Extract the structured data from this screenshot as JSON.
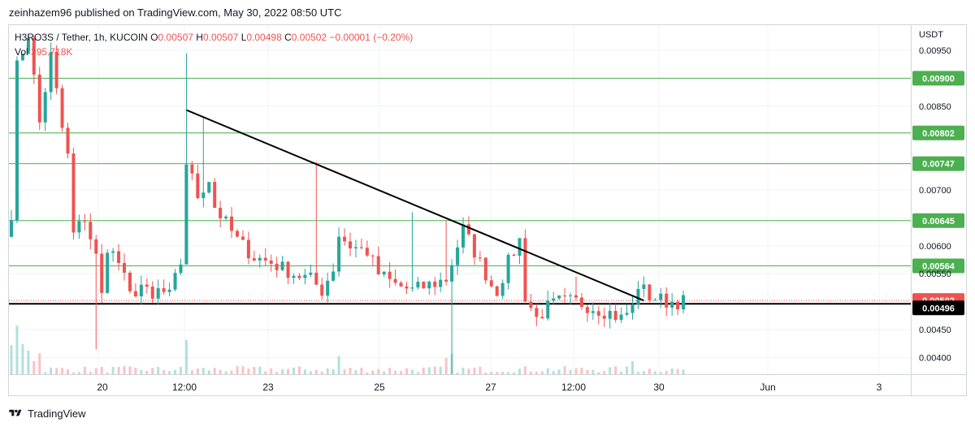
{
  "header": {
    "published": "zeinhazem96 published on TradingView.com, May 30, 2022 08:50 UTC"
  },
  "legend": {
    "symbol": "H3RO3S / Tether, 1h, KUCOIN",
    "o_label": "O",
    "o_value": "0.00507",
    "h_label": "H",
    "h_value": "0.00507",
    "l_label": "L",
    "l_value": "0.00498",
    "c_label": "C",
    "c_value": "0.00502",
    "change": "−0.00001 (−0.20%)",
    "vol_label": "Vol",
    "vol_value": "395.718K"
  },
  "footer": {
    "brand": "TradingView"
  },
  "colors": {
    "up": "#26a69a",
    "down": "#ef5350",
    "level": "#4caf50",
    "black": "#000000",
    "grid": "#f0f3fa"
  },
  "chart_data": {
    "type": "candlestick",
    "currency": "USDT",
    "ylim": [
      0.0037,
      0.00995
    ],
    "y_ticks": [
      "0.00950",
      "0.00850",
      "0.00700",
      "0.00600",
      "0.00550",
      "0.00450",
      "0.00400"
    ],
    "x_ticks": [
      "20",
      "12:00",
      "23",
      "25",
      "27",
      "12:00",
      "30",
      "Jun",
      "3"
    ],
    "levels": [
      {
        "value": 0.009,
        "label": "0.00900"
      },
      {
        "value": 0.00802,
        "label": "0.00802"
      },
      {
        "value": 0.00747,
        "label": "0.00747"
      },
      {
        "value": 0.00645,
        "label": "0.00645"
      },
      {
        "value": 0.00564,
        "label": "0.00564"
      }
    ],
    "support": {
      "value": 0.00496,
      "label": "0.00496"
    },
    "last_price": {
      "value": 0.00502,
      "label": "0.00502"
    },
    "trendline": {
      "start_index": 31,
      "start_price": 0.00843,
      "end_index": 112,
      "end_price": 0.00502
    },
    "candle_count": 120,
    "price_path": [
      [
        0,
        0.0066
      ],
      [
        1,
        0.0092
      ],
      [
        3,
        0.0098
      ],
      [
        5,
        0.0082
      ],
      [
        7,
        0.0094
      ],
      [
        9,
        0.0081
      ],
      [
        10,
        0.0076
      ],
      [
        11,
        0.0062
      ],
      [
        13,
        0.0065
      ],
      [
        15,
        0.0058
      ],
      [
        16,
        0.0051
      ],
      [
        17,
        0.006
      ],
      [
        19,
        0.0057
      ],
      [
        21,
        0.0051
      ],
      [
        23,
        0.0053
      ],
      [
        25,
        0.005
      ],
      [
        26,
        0.0052
      ],
      [
        28,
        0.0051
      ],
      [
        30,
        0.0057
      ],
      [
        31,
        0.0075
      ],
      [
        33,
        0.0069
      ],
      [
        35,
        0.0072
      ],
      [
        36,
        0.0067
      ],
      [
        38,
        0.0064
      ],
      [
        40,
        0.0061
      ],
      [
        43,
        0.0058
      ],
      [
        46,
        0.0057
      ],
      [
        50,
        0.0055
      ],
      [
        53,
        0.0054
      ],
      [
        55,
        0.0052
      ],
      [
        57,
        0.0056
      ],
      [
        58,
        0.0062
      ],
      [
        60,
        0.006
      ],
      [
        63,
        0.0059
      ],
      [
        65,
        0.0055
      ],
      [
        68,
        0.0053
      ],
      [
        71,
        0.0052
      ],
      [
        74,
        0.0053
      ],
      [
        77,
        0.0054
      ],
      [
        78,
        0.0057
      ],
      [
        80,
        0.0063
      ],
      [
        82,
        0.0059
      ],
      [
        85,
        0.0053
      ],
      [
        86,
        0.0052
      ],
      [
        88,
        0.0057
      ],
      [
        90,
        0.0061
      ],
      [
        91,
        0.0051
      ],
      [
        93,
        0.0047
      ],
      [
        95,
        0.0049
      ],
      [
        97,
        0.005
      ],
      [
        100,
        0.005
      ],
      [
        103,
        0.0049
      ],
      [
        106,
        0.0048
      ],
      [
        108,
        0.0047
      ],
      [
        110,
        0.0049
      ],
      [
        111,
        0.0053
      ],
      [
        113,
        0.0051
      ],
      [
        116,
        0.005
      ],
      [
        119,
        0.005
      ]
    ],
    "spikes": [
      {
        "index": 31,
        "high": 0.00945,
        "low": 0.006
      },
      {
        "index": 34,
        "high": 0.0083
      },
      {
        "index": 54,
        "high": 0.0075
      },
      {
        "index": 71,
        "high": 0.0066
      },
      {
        "index": 77,
        "high": 0.00645
      },
      {
        "index": 78,
        "low": 0.0037
      },
      {
        "index": 15,
        "low": 0.00415
      },
      {
        "index": 84,
        "high": 0.00565
      },
      {
        "index": 100,
        "high": 0.00545
      }
    ],
    "volume_max_label": "395.718K"
  }
}
